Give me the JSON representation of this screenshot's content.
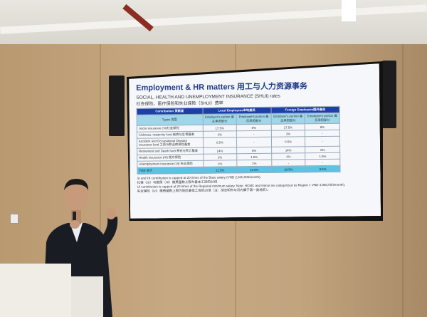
{
  "slide": {
    "title": "Employment & HR matters 用工与人力资源事务",
    "subtitle_en": "SOCIAL, HEALTH AND UNEMPLOYMENT INSURANCE (SHUI) rates",
    "subtitle_zh": "社会保险、医疗保险和失业保险（SHUI）费率",
    "table": {
      "group_headers": [
        "Contribution 贡献度",
        "Local Employees本地雇员",
        "Foreign Employees国外雇员"
      ],
      "sub_headers": [
        "Types 类型",
        "Employer's portion 雇主承担部分",
        "Employee's portion 雇员承担部分",
        "Employer's portion 雇主承担部分",
        "Employee's portion 雇员承担部分"
      ],
      "rows": [
        [
          "Social insurance (SI)社会保险",
          "17.5%",
          "8%",
          "17.5%",
          "8%"
        ],
        [
          "Sickness, maternity fund 疾病与生育基金",
          "3%",
          "-",
          "3%",
          "-"
        ],
        [
          "Accident and Occupational Disease insurance fund 工伤与职业病保险基金",
          "0.5%",
          "-",
          "0.5%",
          "-"
        ],
        [
          "Retirement and Death fund 养老与死亡基金",
          "14%",
          "8%",
          "14%",
          "8%"
        ],
        [
          "Health insurance (HI) 医疗保险",
          "3%",
          "1.5%",
          "3%",
          "1.5%"
        ],
        [
          "Unemployment insurance (UI) 失业保险",
          "1%",
          "1%",
          "-",
          "-"
        ]
      ],
      "total": [
        "Total 总计",
        "21.5%",
        "10.5%",
        "20.5%",
        "9.5%"
      ]
    },
    "notes": [
      {
        "en": "SI and HI contribution is capped at 20 times of the Base salary (VND 2,340,000/month).",
        "zh": "社保（SI）与医保（HI）缴费基数上限为基本工资的20倍"
      },
      {
        "en": "UI contribution is capped at 20 times of the Regional minimum salary. Note: HCMC and Hanoi are categorized as Region I: VND 4,960,000/month).",
        "zh": "失业保险（UI）缴费基数上限为地区最低工资的20倍（注：胡志明市与河内属于第一类地区）。"
      }
    ]
  },
  "colors": {
    "title": "#1f3c8a",
    "table_header": "#1d3fa8",
    "subheader": "#9fd6ea",
    "total_row": "#5cc3e4"
  }
}
